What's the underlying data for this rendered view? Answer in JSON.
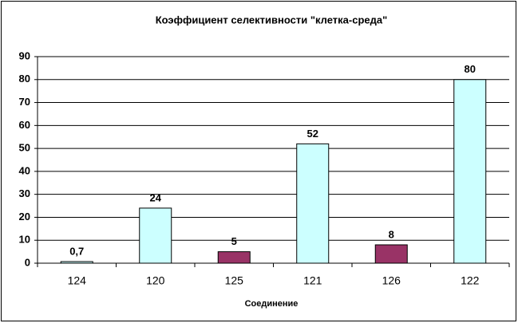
{
  "chart_data": {
    "type": "bar",
    "title": "Коэффициент селективности \"клетка-среда\"",
    "x_label": "Соединение",
    "categories": [
      "124",
      "120",
      "125",
      "121",
      "126",
      "122"
    ],
    "values": [
      0.7,
      24,
      5,
      52,
      8,
      80
    ],
    "value_labels": [
      "0,7",
      "24",
      "5",
      "52",
      "8",
      "80"
    ],
    "colors": [
      "#ccffff",
      "#ccffff",
      "#993366",
      "#ccffff",
      "#993366",
      "#ccffff"
    ],
    "ylim": [
      0,
      90
    ],
    "yticks": [
      0,
      10,
      20,
      30,
      40,
      50,
      60,
      70,
      80,
      90
    ],
    "grid": true
  }
}
